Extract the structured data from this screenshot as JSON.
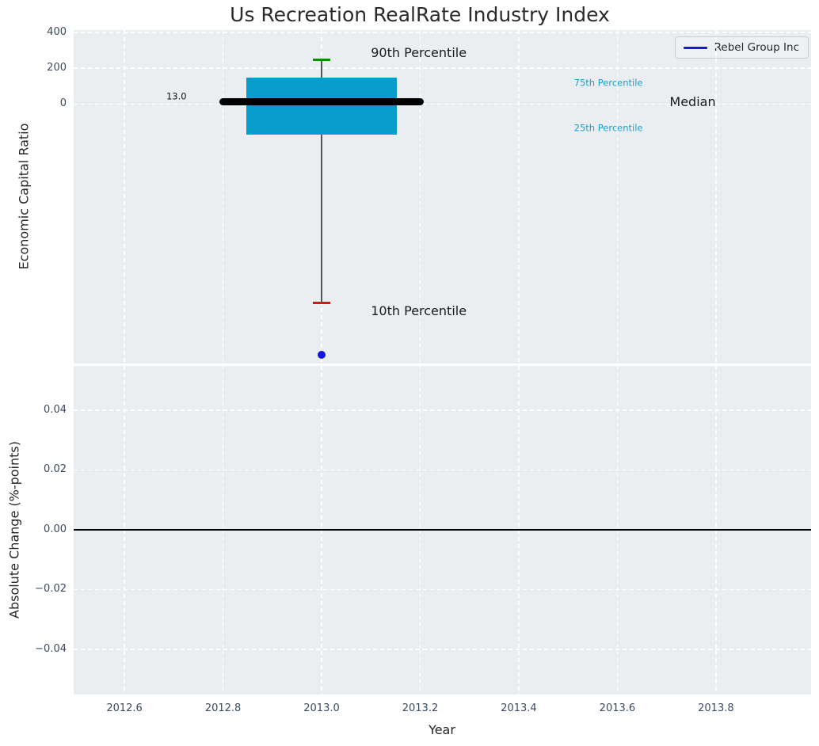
{
  "figure": {
    "title": "Us Recreation RealRate Industry Index"
  },
  "legend": {
    "label": "Rebel Group Inc",
    "line_color": "#1a1acc"
  },
  "colors": {
    "axes_bg": "#eaeef0",
    "grid": "#ffffff",
    "box_fill": "#089ccd",
    "median_line": "#000000",
    "whisker": "#555555",
    "p90_cap": "#108a10",
    "p10_cap": "#e01212",
    "company_dot": "#1414e0",
    "tick_label": "#3b4a5f",
    "text": "#262626",
    "percentile_label": "#1b9ecb"
  },
  "chart_data": [
    {
      "type": "boxplot",
      "title": "Us Recreation RealRate Industry Index",
      "ylabel": "Economic Capital Ratio",
      "legend_entries": [
        "Rebel Group Inc"
      ],
      "x_center": 2013.0,
      "stats": {
        "p90": 248,
        "q3": 148,
        "median": 13.0,
        "q1": -170,
        "p10": -1110
      },
      "median_value_label": "13.0",
      "company_point": {
        "name": "Rebel Group Inc",
        "x": 2013.0,
        "y": -1400
      },
      "geometry": {
        "box_half_width": 0.152,
        "median_half_width": 0.2075,
        "cap_half_width": 0.017
      },
      "xlim": [
        2012.497,
        2013.993
      ],
      "ylim": [
        -1447,
        413
      ],
      "grid": true,
      "yticks": [
        {
          "v": 400,
          "label": "400"
        },
        {
          "v": 200,
          "label": "200"
        },
        {
          "v": 0,
          "label": "0"
        }
      ],
      "xtick_values": [
        2012.6,
        2012.8,
        2013.0,
        2013.2,
        2013.4,
        2013.6,
        2013.8
      ],
      "annotations": [
        {
          "name": "p90-label",
          "text": "90th Percentile",
          "x": 2013.1,
          "y": 285,
          "size": 16,
          "color": "#1a1a1a"
        },
        {
          "name": "p10-label",
          "text": "10th Percentile",
          "x": 2013.1,
          "y": -1155,
          "size": 16,
          "color": "#1a1a1a"
        },
        {
          "name": "q3-label",
          "text": "75th Percentile",
          "x": 2013.512,
          "y": 119,
          "size": 11.5,
          "color": "#1b9ecb"
        },
        {
          "name": "q1-label",
          "text": "25th Percentile",
          "x": 2013.512,
          "y": -135,
          "size": 11.5,
          "color": "#1b9ecb"
        },
        {
          "name": "median-label",
          "text": "Median",
          "x": 2013.706,
          "y": 11,
          "size": 16,
          "color": "#1a1a1a"
        },
        {
          "name": "median-value-label",
          "text": "13.0",
          "x": 2012.685,
          "y": 40,
          "size": 11.5,
          "color": "#111111"
        }
      ]
    },
    {
      "type": "line",
      "ylabel": "Absolute Change (%-points)",
      "xlabel": "Year",
      "zero_line_y": 0.0,
      "series": [],
      "xlim": [
        2012.497,
        2013.993
      ],
      "ylim": [
        -0.0551,
        0.0548
      ],
      "grid": true,
      "yticks": [
        {
          "v": 0.04,
          "label": "0.04"
        },
        {
          "v": 0.02,
          "label": "0.02"
        },
        {
          "v": 0.0,
          "label": "0.00"
        },
        {
          "v": -0.02,
          "label": "−0.02"
        },
        {
          "v": -0.04,
          "label": "−0.04"
        }
      ],
      "xticks": [
        {
          "v": 2012.6,
          "label": "2012.6"
        },
        {
          "v": 2012.8,
          "label": "2012.8"
        },
        {
          "v": 2013.0,
          "label": "2013.0"
        },
        {
          "v": 2013.2,
          "label": "2013.2"
        },
        {
          "v": 2013.4,
          "label": "2013.4"
        },
        {
          "v": 2013.6,
          "label": "2013.6"
        },
        {
          "v": 2013.8,
          "label": "2013.8"
        }
      ]
    }
  ]
}
